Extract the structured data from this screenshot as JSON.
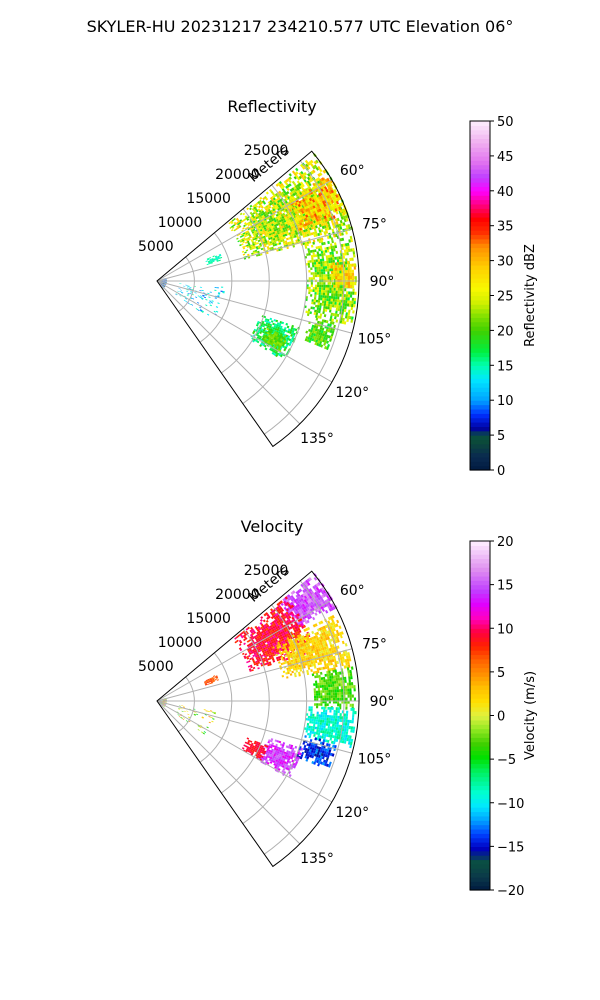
{
  "figure": {
    "suptitle": "SKYLER-HU  20231217  234210.577 UTC Elevation 06°"
  },
  "chart_data": [
    {
      "type": "heatmap",
      "projection": "polar-sector",
      "title": "Reflectivity",
      "range_axis_label": "Meters",
      "range_ticks": [
        5000,
        10000,
        15000,
        20000,
        25000
      ],
      "range_tick_labels": [
        "5000",
        "10000",
        "15000",
        "20000",
        "25000"
      ],
      "azimuth_ticks_deg": [
        60,
        75,
        90,
        105,
        120,
        135
      ],
      "azimuth_tick_labels": [
        "60°",
        "75°",
        "90°",
        "105°",
        "120°",
        "135°"
      ],
      "azimuth_range_deg": [
        50,
        145
      ],
      "range_max_m": 27000,
      "grid": true,
      "colorbar": {
        "label": "Reflectivity dBZ",
        "min": 0,
        "max": 50,
        "ticks": [
          0,
          5,
          10,
          15,
          20,
          25,
          30,
          35,
          40,
          45,
          50
        ],
        "tick_labels": [
          "0",
          "5",
          "10",
          "15",
          "20",
          "25",
          "30",
          "35",
          "40",
          "45",
          "50"
        ],
        "stops": [
          [
            0,
            "#001a40"
          ],
          [
            0.04,
            "#0a2a50"
          ],
          [
            0.08,
            "#0b4a3a"
          ],
          [
            0.1,
            "#0a5040"
          ],
          [
            0.12,
            "#0000a0"
          ],
          [
            0.16,
            "#0030ff"
          ],
          [
            0.2,
            "#00a0ff"
          ],
          [
            0.26,
            "#00e8ff"
          ],
          [
            0.3,
            "#00ffb0"
          ],
          [
            0.34,
            "#00f040"
          ],
          [
            0.4,
            "#40d000"
          ],
          [
            0.44,
            "#80e000"
          ],
          [
            0.48,
            "#d0f000"
          ],
          [
            0.52,
            "#f8f800"
          ],
          [
            0.58,
            "#ffd000"
          ],
          [
            0.64,
            "#ff9000"
          ],
          [
            0.68,
            "#ff3000"
          ],
          [
            0.72,
            "#ff0000"
          ],
          [
            0.76,
            "#ff0080"
          ],
          [
            0.8,
            "#ff00ff"
          ],
          [
            0.84,
            "#c040ff"
          ],
          [
            0.88,
            "#e070f0"
          ],
          [
            0.94,
            "#f0b0f0"
          ],
          [
            1,
            "#fff0ff"
          ]
        ]
      },
      "echo_regions": [
        {
          "az": [
            51,
            76
          ],
          "range_m": [
            12000,
            27000
          ],
          "value": 24,
          "spread": 6
        },
        {
          "az": [
            58,
            70
          ],
          "range_m": [
            20000,
            27000
          ],
          "value": 29,
          "spread": 5
        },
        {
          "az": [
            76,
            103
          ],
          "range_m": [
            20000,
            26500
          ],
          "value": 22,
          "spread": 5
        },
        {
          "az": [
            84,
            92
          ],
          "range_m": [
            23000,
            26500
          ],
          "value": 28,
          "spread": 4
        },
        {
          "az": [
            103,
            112
          ],
          "range_m": [
            21000,
            24500
          ],
          "value": 20,
          "spread": 3
        },
        {
          "az": [
            108,
            122
          ],
          "range_m": [
            14500,
            20000
          ],
          "value": 17,
          "spread": 3
        },
        {
          "az": [
            113,
            120
          ],
          "range_m": [
            16000,
            19000
          ],
          "value": 21,
          "spread": 2
        },
        {
          "az": [
            66,
            72
          ],
          "range_m": [
            7000,
            9000
          ],
          "value": 15,
          "spread": 1
        },
        {
          "az": [
            95,
            125
          ],
          "range_m": [
            3000,
            9000
          ],
          "value": 12,
          "spread": 4,
          "sparse": true
        },
        {
          "az": [
            70,
            140
          ],
          "range_m": [
            200,
            1200
          ],
          "value": 7,
          "spread": 4
        }
      ]
    },
    {
      "type": "heatmap",
      "projection": "polar-sector",
      "title": "Velocity",
      "range_axis_label": "Meters",
      "range_ticks": [
        5000,
        10000,
        15000,
        20000,
        25000
      ],
      "range_tick_labels": [
        "5000",
        "10000",
        "15000",
        "20000",
        "25000"
      ],
      "azimuth_ticks_deg": [
        60,
        75,
        90,
        105,
        120,
        135
      ],
      "azimuth_tick_labels": [
        "60°",
        "75°",
        "90°",
        "105°",
        "120°",
        "135°"
      ],
      "azimuth_range_deg": [
        50,
        145
      ],
      "range_max_m": 27000,
      "grid": true,
      "colorbar": {
        "label": "Velocity (m/s)",
        "min": -20,
        "max": 20,
        "ticks": [
          -20,
          -15,
          -10,
          -5,
          0,
          5,
          10,
          15,
          20
        ],
        "tick_labels": [
          "−20",
          "−15",
          "−10",
          "−5",
          "0",
          "5",
          "10",
          "15",
          "20"
        ],
        "stops": [
          [
            0,
            "#001a40"
          ],
          [
            0.04,
            "#0b3a4a"
          ],
          [
            0.08,
            "#0a5040"
          ],
          [
            0.12,
            "#0000c0"
          ],
          [
            0.16,
            "#0040ff"
          ],
          [
            0.2,
            "#00a0ff"
          ],
          [
            0.24,
            "#00e8ff"
          ],
          [
            0.28,
            "#00ffd0"
          ],
          [
            0.34,
            "#00f060"
          ],
          [
            0.38,
            "#00e000"
          ],
          [
            0.42,
            "#40d000"
          ],
          [
            0.46,
            "#90e820"
          ],
          [
            0.5,
            "#e0f040"
          ],
          [
            0.54,
            "#ffe000"
          ],
          [
            0.58,
            "#ffc000"
          ],
          [
            0.62,
            "#ff9000"
          ],
          [
            0.66,
            "#ff6000"
          ],
          [
            0.7,
            "#ff2000"
          ],
          [
            0.74,
            "#ff0040"
          ],
          [
            0.78,
            "#ff00c0"
          ],
          [
            0.82,
            "#e000ff"
          ],
          [
            0.86,
            "#c040ff"
          ],
          [
            0.92,
            "#e090f0"
          ],
          [
            1,
            "#fff0ff"
          ]
        ]
      },
      "echo_regions": [
        {
          "az": [
            51,
            62
          ],
          "range_m": [
            21000,
            27000
          ],
          "value": 15,
          "spread": 2
        },
        {
          "az": [
            51,
            72
          ],
          "range_m": [
            13000,
            22000
          ],
          "value": 9,
          "spread": 2
        },
        {
          "az": [
            64,
            80
          ],
          "range_m": [
            17000,
            26500
          ],
          "value": 2,
          "spread": 2
        },
        {
          "az": [
            80,
            92
          ],
          "range_m": [
            21000,
            26500
          ],
          "value": -3,
          "spread": 2
        },
        {
          "az": [
            92,
            103
          ],
          "range_m": [
            20000,
            26500
          ],
          "value": -9,
          "spread": 2
        },
        {
          "az": [
            103,
            112
          ],
          "range_m": [
            20000,
            24500
          ],
          "value": -14,
          "spread": 2
        },
        {
          "az": [
            108,
            120
          ],
          "range_m": [
            15500,
            20500
          ],
          "value": 14,
          "spread": 2
        },
        {
          "az": [
            112,
            120
          ],
          "range_m": [
            13000,
            16000
          ],
          "value": 9,
          "spread": 1
        },
        {
          "az": [
            66,
            72
          ],
          "range_m": [
            6500,
            8500
          ],
          "value": 7,
          "spread": 1
        },
        {
          "az": [
            100,
            125
          ],
          "range_m": [
            3000,
            8000
          ],
          "value": 0,
          "spread": 6,
          "sparse": true
        },
        {
          "az": [
            70,
            130
          ],
          "range_m": [
            200,
            1200
          ],
          "value": 0,
          "spread": 12
        }
      ]
    }
  ]
}
